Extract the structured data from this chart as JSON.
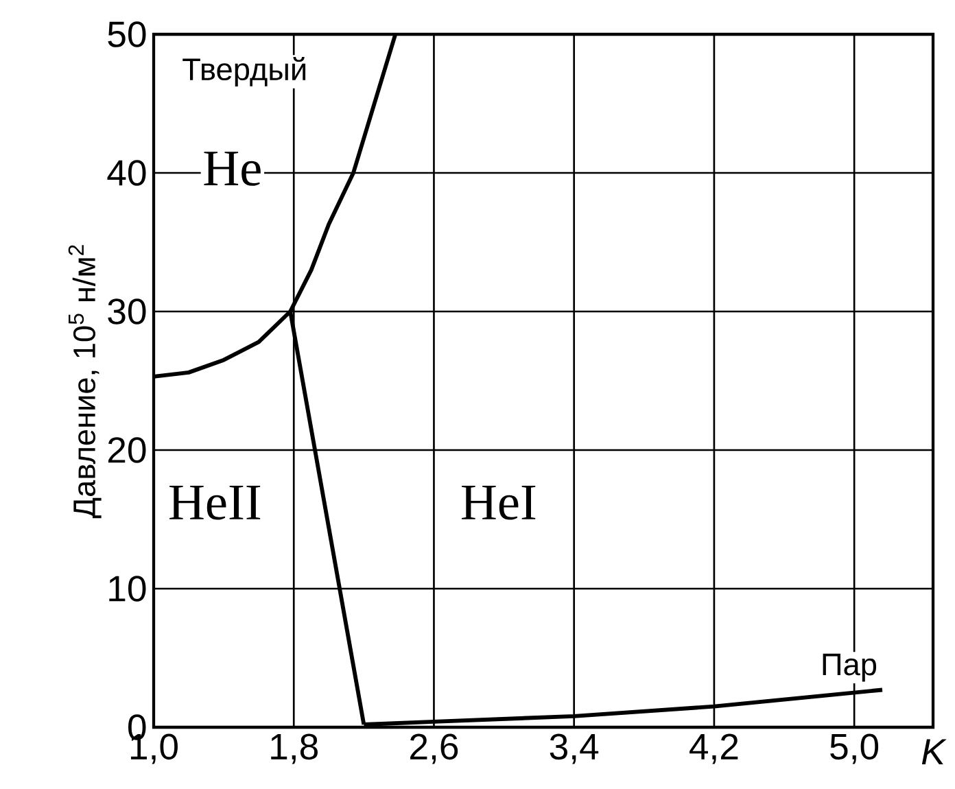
{
  "chart_data": {
    "type": "line",
    "xlabel": "K",
    "ylabel": "Давление, 10$^{5}$ н/м$^{2}$",
    "annotations": [
      "Твердый",
      "He",
      "HeII",
      "HeI",
      "Пар"
    ],
    "xlim": [
      1.0,
      5.45
    ],
    "ylim": [
      0,
      50
    ],
    "xticks": [
      {
        "value": 1.0,
        "label": "1,0"
      },
      {
        "value": 1.8,
        "label": "1,8"
      },
      {
        "value": 2.6,
        "label": "2,6"
      },
      {
        "value": 3.4,
        "label": "3,4"
      },
      {
        "value": 4.2,
        "label": "4,2"
      },
      {
        "value": 5.0,
        "label": "5,0"
      }
    ],
    "yticks": [
      0,
      10,
      20,
      30,
      40,
      50
    ],
    "grid": true,
    "marker": "none",
    "line_style": "solid",
    "series": [
      {
        "color": "#000000",
        "x": [
          1.0,
          1.2,
          1.4,
          1.6,
          1.78,
          1.9,
          2.0,
          2.14,
          2.26,
          2.38
        ],
        "values": [
          25.3,
          25.6,
          26.5,
          27.8,
          30,
          33,
          36.3,
          40,
          45,
          50
        ]
      },
      {
        "color": "#000000",
        "x": [
          1.78,
          2.2
        ],
        "values": [
          30,
          0.2
        ]
      },
      {
        "color": "#000000",
        "x": [
          2.2,
          2.6,
          3.4,
          4.2,
          5.16
        ],
        "values": [
          0.2,
          0.4,
          0.8,
          1.5,
          2.7
        ]
      }
    ]
  }
}
